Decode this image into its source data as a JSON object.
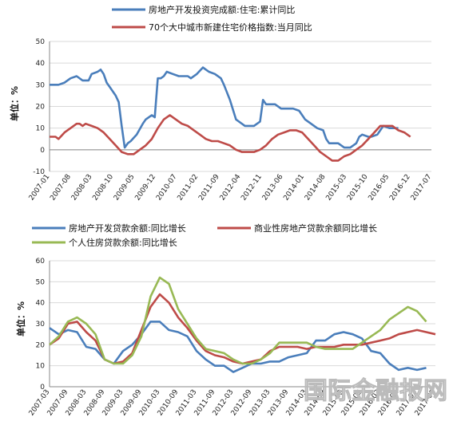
{
  "chart_data": [
    {
      "type": "line",
      "ylabel": "单位：%",
      "ylim": [
        -10,
        50
      ],
      "yticks": [
        -10,
        0,
        10,
        20,
        30,
        40,
        50
      ],
      "x_tick_labels": [
        "2007-01",
        "2007-08",
        "2008-03",
        "2008-10",
        "2009-05",
        "2009-12",
        "2010-07",
        "2011-02",
        "2011-09",
        "2012-04",
        "2012-11",
        "2013-06",
        "2014-01",
        "2014-08",
        "2015-03",
        "2015-10",
        "2016-05",
        "2016-12",
        "2017-07"
      ],
      "x_count": 128,
      "grid": "horizontal",
      "legend_position": "top",
      "series": [
        {
          "name": "房地产开发投资完成额:住宅:累计同比",
          "color": "#4a7ebb",
          "points": [
            [
              0,
              30
            ],
            [
              3,
              30
            ],
            [
              5,
              31
            ],
            [
              7,
              33
            ],
            [
              9,
              34
            ],
            [
              11,
              32
            ],
            [
              13,
              32
            ],
            [
              14,
              35
            ],
            [
              16,
              36
            ],
            [
              17,
              37
            ],
            [
              18,
              35
            ],
            [
              19,
              31
            ],
            [
              20,
              29
            ],
            [
              22,
              25
            ],
            [
              23,
              22
            ],
            [
              24,
              11
            ],
            [
              25,
              1
            ],
            [
              26,
              3
            ],
            [
              27,
              4
            ],
            [
              29,
              7
            ],
            [
              31,
              12
            ],
            [
              32,
              14
            ],
            [
              34,
              16
            ],
            [
              35,
              15
            ],
            [
              36,
              33
            ],
            [
              37,
              33
            ],
            [
              38,
              34
            ],
            [
              39,
              36
            ],
            [
              41,
              35
            ],
            [
              43,
              34
            ],
            [
              46,
              34
            ],
            [
              47,
              33
            ],
            [
              49,
              35
            ],
            [
              51,
              38
            ],
            [
              52,
              37
            ],
            [
              53,
              36
            ],
            [
              55,
              35
            ],
            [
              57,
              33
            ],
            [
              58,
              30
            ],
            [
              60,
              23
            ],
            [
              62,
              14
            ],
            [
              63,
              13
            ],
            [
              65,
              11
            ],
            [
              67,
              11
            ],
            [
              68,
              11
            ],
            [
              69,
              12
            ],
            [
              70,
              13
            ],
            [
              71,
              23
            ],
            [
              72,
              21
            ],
            [
              75,
              21
            ],
            [
              77,
              19
            ],
            [
              81,
              19
            ],
            [
              83,
              18
            ],
            [
              85,
              14
            ],
            [
              87,
              12
            ],
            [
              89,
              10
            ],
            [
              91,
              9
            ],
            [
              92,
              5
            ],
            [
              93,
              3
            ],
            [
              96,
              3
            ],
            [
              98,
              1
            ],
            [
              100,
              1
            ],
            [
              101,
              2
            ],
            [
              102,
              3
            ],
            [
              103,
              6
            ],
            [
              104,
              7
            ],
            [
              106,
              6
            ],
            [
              107,
              6
            ],
            [
              109,
              7
            ],
            [
              110,
              9
            ],
            [
              111,
              11
            ],
            [
              113,
              10
            ],
            [
              116,
              10
            ]
          ]
        },
        {
          "name": "70个大中城市新建住宅价格指数:当月同比",
          "color": "#be4b48",
          "points": [
            [
              0,
              6
            ],
            [
              2,
              6
            ],
            [
              3,
              5
            ],
            [
              5,
              8
            ],
            [
              7,
              10
            ],
            [
              9,
              12
            ],
            [
              10,
              12
            ],
            [
              11,
              11
            ],
            [
              12,
              12
            ],
            [
              14,
              11
            ],
            [
              16,
              10
            ],
            [
              18,
              8
            ],
            [
              20,
              5
            ],
            [
              22,
              2
            ],
            [
              24,
              -1
            ],
            [
              26,
              -2
            ],
            [
              28,
              -2
            ],
            [
              30,
              0
            ],
            [
              32,
              2
            ],
            [
              34,
              5
            ],
            [
              36,
              10
            ],
            [
              38,
              14
            ],
            [
              40,
              16
            ],
            [
              42,
              14
            ],
            [
              44,
              12
            ],
            [
              46,
              11
            ],
            [
              48,
              9
            ],
            [
              50,
              7
            ],
            [
              52,
              5
            ],
            [
              54,
              4
            ],
            [
              56,
              4
            ],
            [
              58,
              3
            ],
            [
              60,
              2
            ],
            [
              62,
              0
            ],
            [
              64,
              -1
            ],
            [
              66,
              -1
            ],
            [
              68,
              -1
            ],
            [
              70,
              0
            ],
            [
              72,
              2
            ],
            [
              74,
              5
            ],
            [
              76,
              7
            ],
            [
              78,
              8
            ],
            [
              80,
              9
            ],
            [
              82,
              9
            ],
            [
              84,
              8
            ],
            [
              86,
              5
            ],
            [
              88,
              2
            ],
            [
              90,
              -1
            ],
            [
              92,
              -3
            ],
            [
              94,
              -5
            ],
            [
              96,
              -5
            ],
            [
              98,
              -3
            ],
            [
              100,
              -2
            ],
            [
              102,
              0
            ],
            [
              104,
              2
            ],
            [
              106,
              5
            ],
            [
              108,
              8
            ],
            [
              110,
              11
            ],
            [
              112,
              11
            ],
            [
              114,
              11
            ],
            [
              116,
              9
            ],
            [
              118,
              8
            ],
            [
              119,
              7
            ],
            [
              120,
              6
            ]
          ]
        }
      ]
    },
    {
      "type": "line",
      "ylabel": "单位：%",
      "ylim": [
        0,
        60
      ],
      "yticks": [
        0,
        10,
        20,
        30,
        40,
        50,
        60
      ],
      "x_tick_labels": [
        "2007-03",
        "2007-09",
        "2008-03",
        "2008-09",
        "2009-03",
        "2009-09",
        "2010-03",
        "2010-09",
        "2011-03",
        "2011-09",
        "2012-03",
        "2012-09",
        "2013-03",
        "2013-09",
        "2014-03",
        "2014-09",
        "2015-03",
        "2015-09",
        "2016-03",
        "2016-09",
        "2017-03",
        "2017-09"
      ],
      "x_count": 43,
      "grid": "horizontal",
      "legend_position": "top",
      "series": [
        {
          "name": "房地产开发贷款余额:同比增长",
          "color": "#4a7ebb",
          "points": [
            [
              0,
              28
            ],
            [
              1,
              25
            ],
            [
              2,
              27
            ],
            [
              3,
              26
            ],
            [
              4,
              19
            ],
            [
              5,
              18
            ],
            [
              6,
              13
            ],
            [
              7,
              11
            ],
            [
              8,
              17
            ],
            [
              9,
              20
            ],
            [
              10,
              25
            ],
            [
              11,
              31
            ],
            [
              12,
              31
            ],
            [
              13,
              27
            ],
            [
              14,
              26
            ],
            [
              15,
              24
            ],
            [
              16,
              17
            ],
            [
              17,
              13
            ],
            [
              18,
              10
            ],
            [
              19,
              10
            ],
            [
              20,
              7
            ],
            [
              21,
              9
            ],
            [
              22,
              11
            ],
            [
              23,
              11
            ],
            [
              24,
              12
            ],
            [
              25,
              12
            ],
            [
              26,
              14
            ],
            [
              27,
              15
            ],
            [
              28,
              16
            ],
            [
              29,
              22
            ],
            [
              30,
              22
            ],
            [
              31,
              25
            ],
            [
              32,
              26
            ],
            [
              33,
              25
            ],
            [
              34,
              23
            ],
            [
              35,
              17
            ],
            [
              36,
              16
            ],
            [
              37,
              11
            ],
            [
              38,
              8
            ],
            [
              39,
              9
            ],
            [
              40,
              8
            ],
            [
              41,
              9
            ]
          ]
        },
        {
          "name": "商业性房地产贷款余额同比增长",
          "color": "#be4b48",
          "points": [
            [
              0,
              20
            ],
            [
              1,
              23
            ],
            [
              2,
              30
            ],
            [
              3,
              31
            ],
            [
              4,
              26
            ],
            [
              5,
              22
            ],
            [
              6,
              13
            ],
            [
              7,
              11
            ],
            [
              8,
              12
            ],
            [
              9,
              16
            ],
            [
              10,
              27
            ],
            [
              11,
              38
            ],
            [
              12,
              44
            ],
            [
              13,
              40
            ],
            [
              14,
              33
            ],
            [
              15,
              28
            ],
            [
              16,
              22
            ],
            [
              17,
              17
            ],
            [
              18,
              15
            ],
            [
              19,
              14
            ],
            [
              20,
              12
            ],
            [
              21,
              11
            ],
            [
              22,
              12
            ],
            [
              23,
              13
            ],
            [
              24,
              17
            ],
            [
              25,
              19
            ],
            [
              26,
              19
            ],
            [
              27,
              19
            ],
            [
              28,
              18
            ],
            [
              29,
              19
            ],
            [
              30,
              19
            ],
            [
              31,
              19
            ],
            [
              32,
              20
            ],
            [
              33,
              20
            ],
            [
              34,
              20
            ],
            [
              35,
              21
            ],
            [
              36,
              22
            ],
            [
              37,
              23
            ],
            [
              38,
              25
            ],
            [
              39,
              26
            ],
            [
              40,
              27
            ],
            [
              41,
              26
            ],
            [
              42,
              25
            ]
          ]
        },
        {
          "name": "个人住房贷款余额:同比增长",
          "color": "#98b954",
          "points": [
            [
              0,
              20
            ],
            [
              1,
              24
            ],
            [
              2,
              31
            ],
            [
              3,
              33
            ],
            [
              4,
              30
            ],
            [
              5,
              25
            ],
            [
              6,
              13
            ],
            [
              7,
              11
            ],
            [
              8,
              11
            ],
            [
              9,
              15
            ],
            [
              10,
              24
            ],
            [
              11,
              43
            ],
            [
              12,
              52
            ],
            [
              13,
              49
            ],
            [
              14,
              37
            ],
            [
              15,
              30
            ],
            [
              16,
              23
            ],
            [
              17,
              18
            ],
            [
              18,
              17
            ],
            [
              19,
              16
            ],
            [
              20,
              13
            ],
            [
              21,
              11
            ],
            [
              22,
              11
            ],
            [
              23,
              13
            ],
            [
              24,
              16
            ],
            [
              25,
              21
            ],
            [
              26,
              21
            ],
            [
              27,
              21
            ],
            [
              28,
              21
            ],
            [
              29,
              19
            ],
            [
              30,
              18
            ],
            [
              31,
              18
            ],
            [
              32,
              18
            ],
            [
              33,
              18
            ],
            [
              34,
              21
            ],
            [
              35,
              24
            ],
            [
              36,
              27
            ],
            [
              37,
              32
            ],
            [
              38,
              35
            ],
            [
              39,
              38
            ],
            [
              40,
              36
            ],
            [
              41,
              31
            ]
          ]
        }
      ]
    }
  ],
  "watermark": "国际金融报网"
}
